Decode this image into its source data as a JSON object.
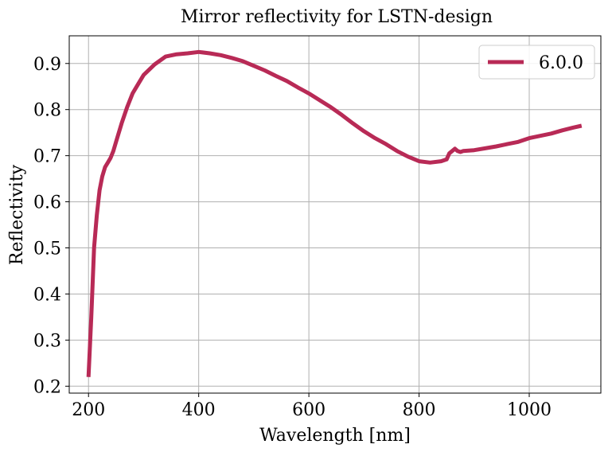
{
  "chart_data": {
    "type": "line",
    "title": "Mirror reflectivity for LSTN-design",
    "xlabel": "Wavelength [nm]",
    "ylabel": "Reflectivity",
    "xlim": [
      165,
      1130
    ],
    "ylim": [
      0.185,
      0.96
    ],
    "xticks": [
      200,
      400,
      600,
      800,
      1000
    ],
    "yticks": [
      0.2,
      0.3,
      0.4,
      0.5,
      0.6,
      0.7,
      0.8,
      0.9
    ],
    "xtick_labels": [
      "200",
      "400",
      "600",
      "800",
      "1000"
    ],
    "ytick_labels": [
      "0.2",
      "0.3",
      "0.4",
      "0.5",
      "0.6",
      "0.7",
      "0.8",
      "0.9"
    ],
    "grid": true,
    "legend_position": "top-right",
    "series": [
      {
        "name": "6.0.0",
        "color": "#b82a56",
        "x": [
          200,
          205,
          210,
          215,
          220,
          225,
          230,
          235,
          240,
          245,
          250,
          260,
          270,
          280,
          290,
          300,
          320,
          340,
          360,
          380,
          400,
          420,
          440,
          460,
          480,
          500,
          520,
          540,
          560,
          580,
          600,
          620,
          640,
          660,
          680,
          700,
          720,
          740,
          760,
          780,
          800,
          820,
          840,
          850,
          855,
          860,
          865,
          870,
          875,
          880,
          900,
          920,
          940,
          960,
          980,
          1000,
          1020,
          1040,
          1060,
          1080,
          1095
        ],
        "y": [
          0.22,
          0.35,
          0.5,
          0.57,
          0.625,
          0.655,
          0.675,
          0.685,
          0.695,
          0.71,
          0.73,
          0.77,
          0.805,
          0.835,
          0.855,
          0.875,
          0.898,
          0.915,
          0.92,
          0.922,
          0.925,
          0.922,
          0.918,
          0.912,
          0.905,
          0.895,
          0.885,
          0.873,
          0.862,
          0.848,
          0.835,
          0.82,
          0.805,
          0.788,
          0.77,
          0.753,
          0.738,
          0.725,
          0.71,
          0.698,
          0.688,
          0.685,
          0.688,
          0.692,
          0.705,
          0.71,
          0.715,
          0.71,
          0.708,
          0.71,
          0.712,
          0.716,
          0.72,
          0.725,
          0.73,
          0.738,
          0.743,
          0.748,
          0.755,
          0.761,
          0.765
        ]
      }
    ]
  }
}
